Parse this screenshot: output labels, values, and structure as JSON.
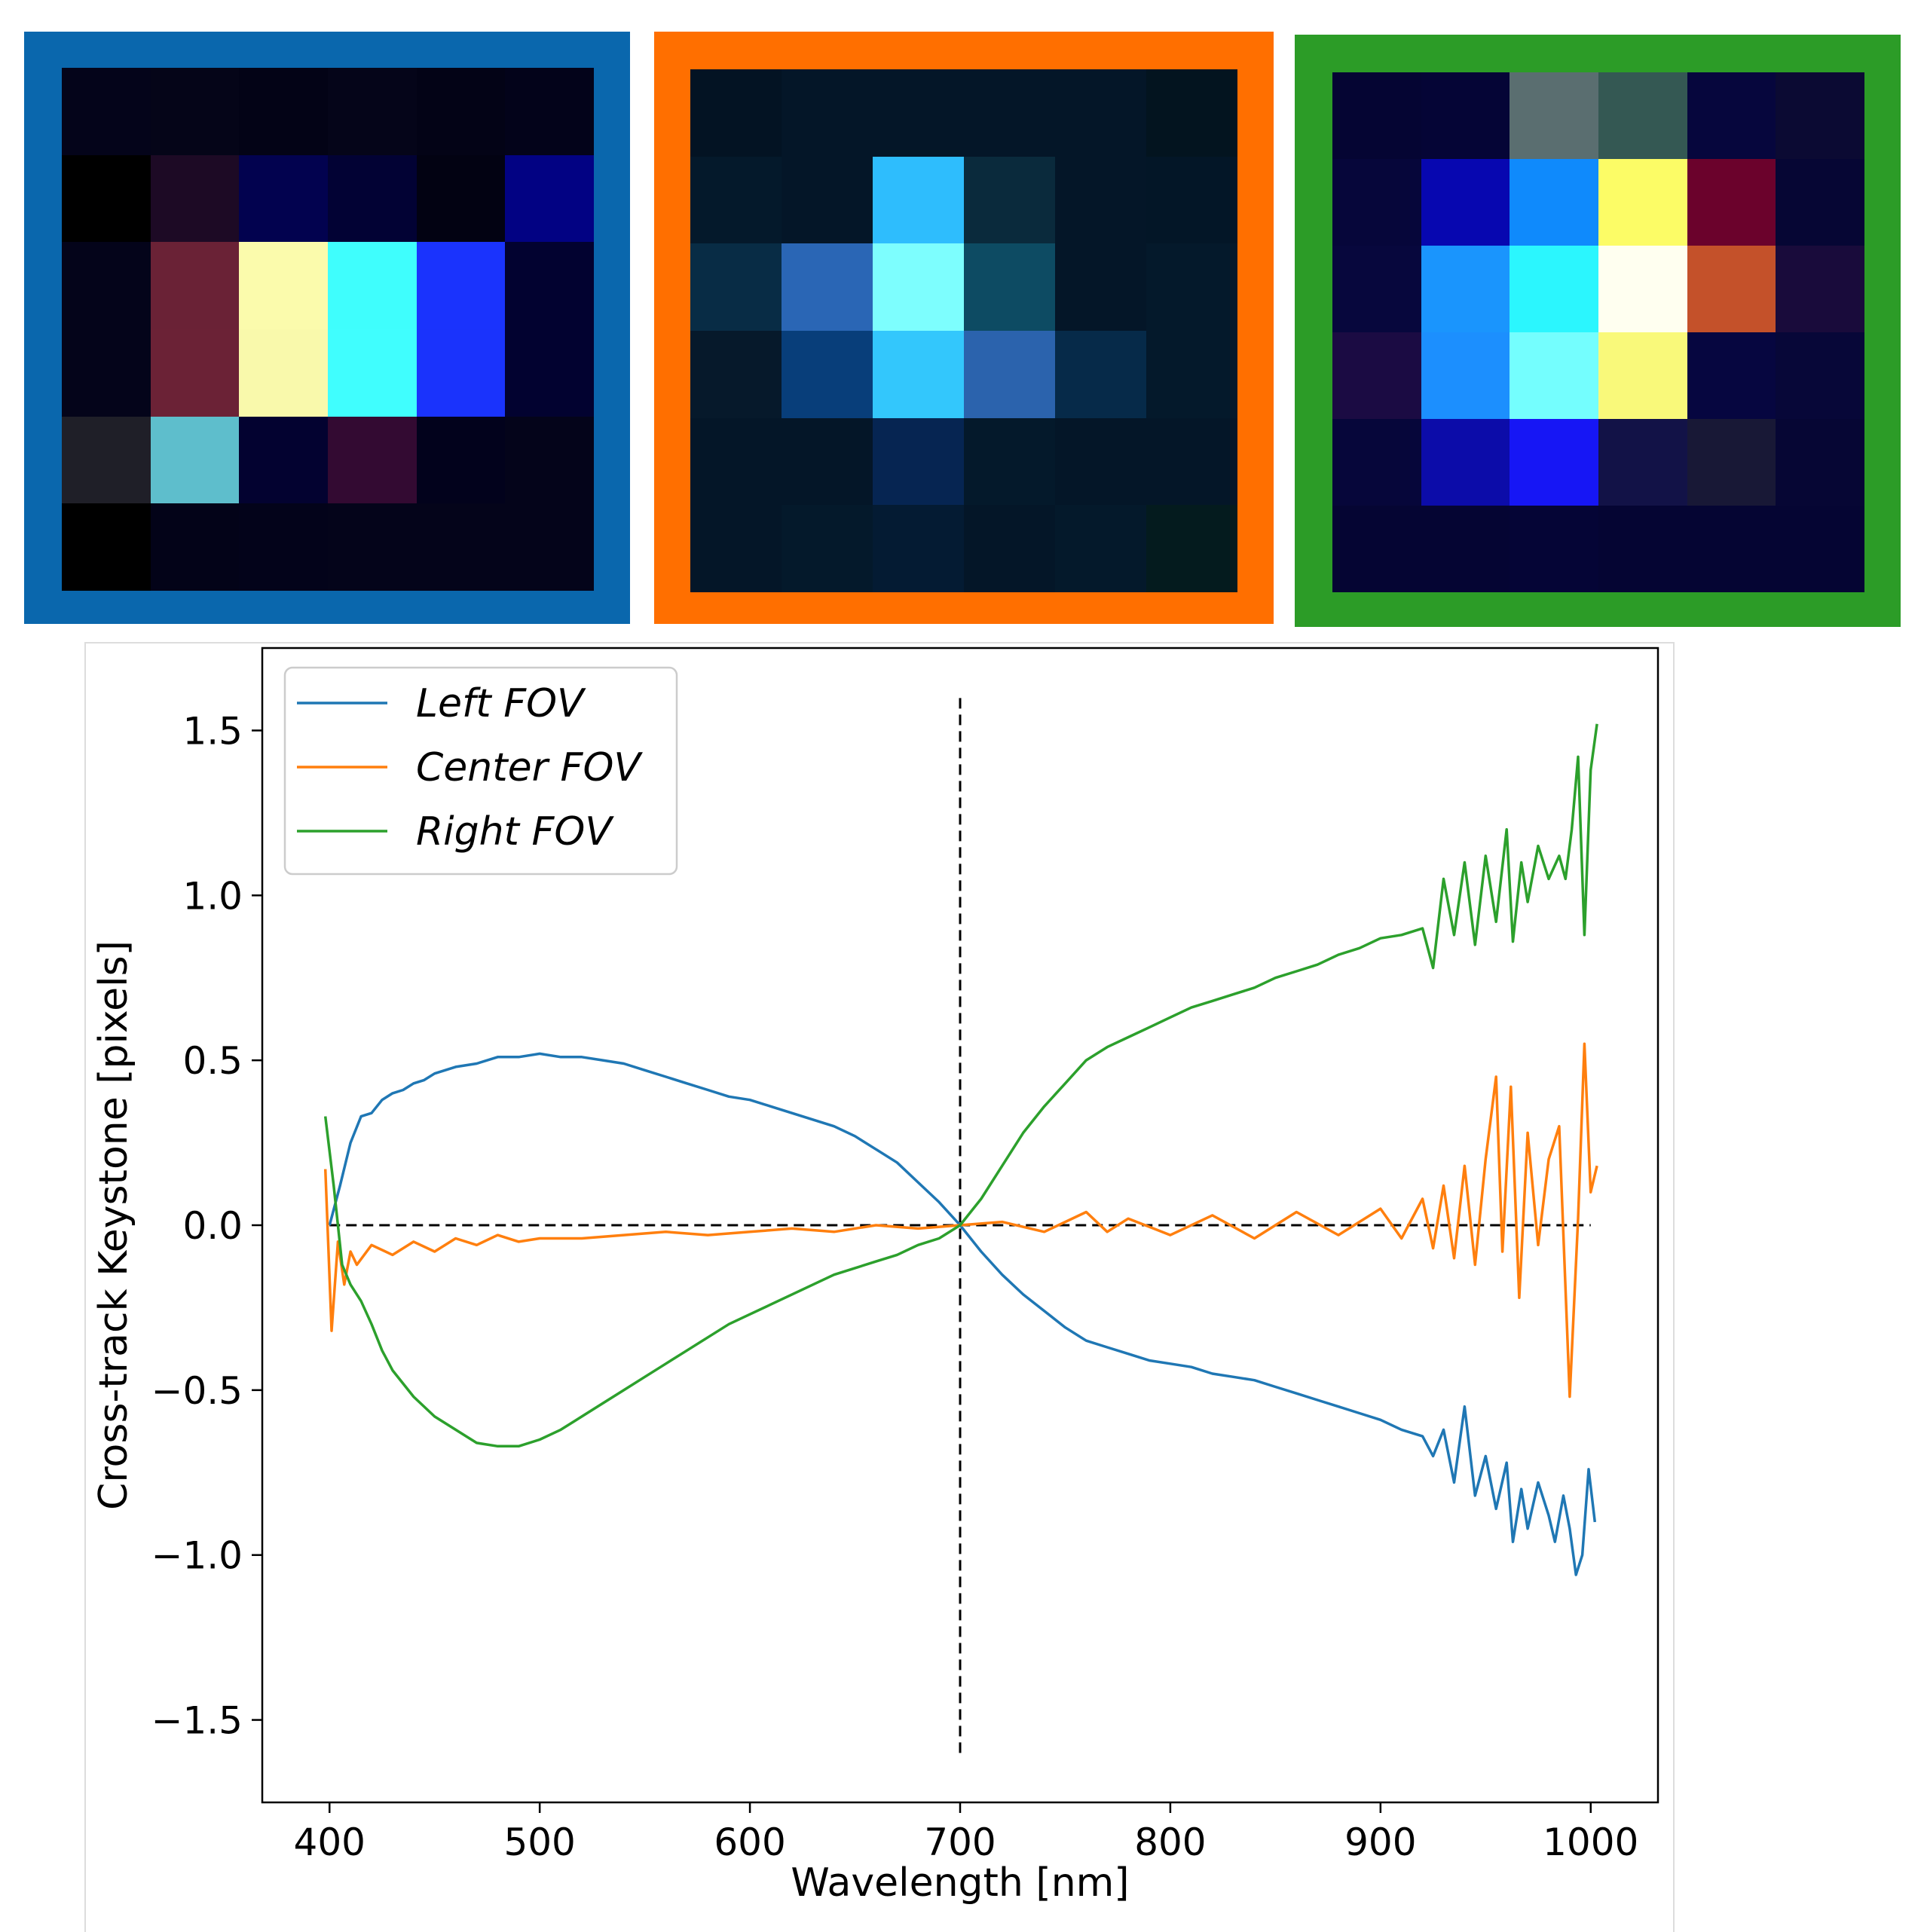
{
  "colors": {
    "left": "#1f77b4",
    "center": "#ff7f0e",
    "right": "#2ca02c"
  },
  "panels": [
    {
      "name": "left-fov-panel",
      "frame_color": "#0a67ad",
      "grid": [
        [
          "#04041a",
          "#050518",
          "#030316",
          "#050519",
          "#030316",
          "#03031a"
        ],
        [
          "#000000",
          "#1d0a25",
          "#02024f",
          "#020234",
          "#020212",
          "#020283"
        ],
        [
          "#04041a",
          "#6a2236",
          "#fbfbac",
          "#3ffefd",
          "#1a33fd",
          "#020230"
        ],
        [
          "#04041a",
          "#6b2236",
          "#f9f9ab",
          "#40fefe",
          "#1a33fc",
          "#020230"
        ],
        [
          "#1f1f28",
          "#5ebecc",
          "#030230",
          "#330a32",
          "#02021c",
          "#04041a"
        ],
        [
          "#000000",
          "#030318",
          "#03031a",
          "#04041a",
          "#04041a",
          "#04041a"
        ]
      ]
    },
    {
      "name": "center-fov-panel",
      "frame_color": "#ff6f00",
      "grid": [
        [
          "#031323",
          "#041628",
          "#041628",
          "#041628",
          "#041628",
          "#03141f"
        ],
        [
          "#04192b",
          "#041628",
          "#2ebdfd",
          "#0a2a3c",
          "#041628",
          "#031627"
        ],
        [
          "#082c45",
          "#2a66b5",
          "#7dfefe",
          "#0d4b63",
          "#041628",
          "#04192b"
        ],
        [
          "#06192b",
          "#083e7a",
          "#33c7fc",
          "#2b63ad",
          "#062a49",
          "#04192b"
        ],
        [
          "#041628",
          "#041628",
          "#062552",
          "#04192b",
          "#041628",
          "#041628"
        ],
        [
          "#041628",
          "#04192b",
          "#041b33",
          "#041628",
          "#04192b",
          "#041b1e"
        ]
      ]
    },
    {
      "name": "right-fov-panel",
      "frame_color": "#2c9c27",
      "grid": [
        [
          "#050533",
          "#050536",
          "#5a6e70",
          "#345853",
          "#06063d",
          "#0b0a33"
        ],
        [
          "#06063a",
          "#0707b0",
          "#0f8afc",
          "#fcfc66",
          "#6b022c",
          "#060634"
        ],
        [
          "#07073d",
          "#1a95fd",
          "#2bf6fe",
          "#fffff0",
          "#c4512a",
          "#190b3b"
        ],
        [
          "#1b0b43",
          "#1c8ffe",
          "#74fefe",
          "#f9f97a",
          "#060640",
          "#070738"
        ],
        [
          "#06063a",
          "#0c0ca9",
          "#1616f5",
          "#121247",
          "#181836",
          "#060634"
        ],
        [
          "#050533",
          "#050533",
          "#050536",
          "#050533",
          "#050533",
          "#050533"
        ]
      ]
    }
  ],
  "chart_data": {
    "type": "line",
    "xlabel": "Wavelength [nm]",
    "ylabel": "Cross-track Keystone [pixels]",
    "xlim": [
      368,
      1032
    ],
    "ylim": [
      -1.75,
      1.75
    ],
    "x_ticks": [
      400,
      500,
      600,
      700,
      800,
      900,
      1000
    ],
    "x_tick_labels": [
      "400",
      "500",
      "600",
      "700",
      "800",
      "900",
      "1000"
    ],
    "y_ticks": [
      -1.5,
      -1.0,
      -0.5,
      0.0,
      0.5,
      1.0,
      1.5
    ],
    "y_tick_labels": [
      "−1.5",
      "−1.0",
      "−0.5",
      "0.0",
      "0.5",
      "1.0",
      "1.5"
    ],
    "legend": {
      "position": "top-left",
      "labels": [
        "Left FOV",
        "Center FOV",
        "Right FOV"
      ]
    },
    "reference_lines": [
      {
        "orientation": "horizontal",
        "y": 0.0,
        "x_range": [
          400,
          1000
        ],
        "style": "dashed",
        "color": "#000000"
      },
      {
        "orientation": "vertical",
        "x": 700,
        "y_range": [
          -1.6,
          1.6
        ],
        "style": "dashed",
        "color": "#000000"
      }
    ],
    "series": [
      {
        "name": "Left FOV",
        "color": "#1f77b4",
        "points": [
          [
            400,
            0.0
          ],
          [
            405,
            0.12
          ],
          [
            410,
            0.25
          ],
          [
            415,
            0.33
          ],
          [
            420,
            0.34
          ],
          [
            425,
            0.38
          ],
          [
            430,
            0.4
          ],
          [
            435,
            0.41
          ],
          [
            440,
            0.43
          ],
          [
            445,
            0.44
          ],
          [
            450,
            0.46
          ],
          [
            460,
            0.48
          ],
          [
            470,
            0.49
          ],
          [
            480,
            0.51
          ],
          [
            490,
            0.51
          ],
          [
            500,
            0.52
          ],
          [
            510,
            0.51
          ],
          [
            520,
            0.51
          ],
          [
            530,
            0.5
          ],
          [
            540,
            0.49
          ],
          [
            550,
            0.47
          ],
          [
            560,
            0.45
          ],
          [
            570,
            0.43
          ],
          [
            580,
            0.41
          ],
          [
            590,
            0.39
          ],
          [
            600,
            0.38
          ],
          [
            610,
            0.36
          ],
          [
            620,
            0.34
          ],
          [
            630,
            0.32
          ],
          [
            640,
            0.3
          ],
          [
            650,
            0.27
          ],
          [
            660,
            0.23
          ],
          [
            670,
            0.19
          ],
          [
            680,
            0.13
          ],
          [
            690,
            0.07
          ],
          [
            700,
            0.0
          ],
          [
            710,
            -0.08
          ],
          [
            720,
            -0.15
          ],
          [
            730,
            -0.21
          ],
          [
            740,
            -0.26
          ],
          [
            750,
            -0.31
          ],
          [
            760,
            -0.35
          ],
          [
            770,
            -0.37
          ],
          [
            780,
            -0.39
          ],
          [
            790,
            -0.41
          ],
          [
            800,
            -0.42
          ],
          [
            810,
            -0.43
          ],
          [
            820,
            -0.45
          ],
          [
            830,
            -0.46
          ],
          [
            840,
            -0.47
          ],
          [
            850,
            -0.49
          ],
          [
            860,
            -0.51
          ],
          [
            870,
            -0.53
          ],
          [
            880,
            -0.55
          ],
          [
            890,
            -0.57
          ],
          [
            900,
            -0.59
          ],
          [
            910,
            -0.62
          ],
          [
            920,
            -0.64
          ],
          [
            925,
            -0.7
          ],
          [
            930,
            -0.62
          ],
          [
            935,
            -0.78
          ],
          [
            940,
            -0.55
          ],
          [
            945,
            -0.82
          ],
          [
            950,
            -0.7
          ],
          [
            955,
            -0.86
          ],
          [
            960,
            -0.72
          ],
          [
            963,
            -0.96
          ],
          [
            967,
            -0.8
          ],
          [
            970,
            -0.92
          ],
          [
            975,
            -0.78
          ],
          [
            980,
            -0.88
          ],
          [
            983,
            -0.96
          ],
          [
            987,
            -0.82
          ],
          [
            990,
            -0.92
          ],
          [
            993,
            -1.06
          ],
          [
            996,
            -1.0
          ],
          [
            999,
            -0.74
          ],
          [
            1002,
            -0.9
          ]
        ]
      },
      {
        "name": "Center FOV",
        "color": "#ff7f0e",
        "points": [
          [
            398,
            0.17
          ],
          [
            401,
            -0.32
          ],
          [
            404,
            -0.05
          ],
          [
            407,
            -0.18
          ],
          [
            410,
            -0.08
          ],
          [
            413,
            -0.12
          ],
          [
            420,
            -0.06
          ],
          [
            430,
            -0.09
          ],
          [
            440,
            -0.05
          ],
          [
            450,
            -0.08
          ],
          [
            460,
            -0.04
          ],
          [
            470,
            -0.06
          ],
          [
            480,
            -0.03
          ],
          [
            490,
            -0.05
          ],
          [
            500,
            -0.04
          ],
          [
            520,
            -0.04
          ],
          [
            540,
            -0.03
          ],
          [
            560,
            -0.02
          ],
          [
            580,
            -0.03
          ],
          [
            600,
            -0.02
          ],
          [
            620,
            -0.01
          ],
          [
            640,
            -0.02
          ],
          [
            660,
            0.0
          ],
          [
            680,
            -0.01
          ],
          [
            700,
            0.0
          ],
          [
            720,
            0.01
          ],
          [
            740,
            -0.02
          ],
          [
            760,
            0.04
          ],
          [
            770,
            -0.02
          ],
          [
            780,
            0.02
          ],
          [
            800,
            -0.03
          ],
          [
            820,
            0.03
          ],
          [
            840,
            -0.04
          ],
          [
            860,
            0.04
          ],
          [
            880,
            -0.03
          ],
          [
            900,
            0.05
          ],
          [
            910,
            -0.04
          ],
          [
            920,
            0.08
          ],
          [
            925,
            -0.07
          ],
          [
            930,
            0.12
          ],
          [
            935,
            -0.1
          ],
          [
            940,
            0.18
          ],
          [
            945,
            -0.12
          ],
          [
            950,
            0.2
          ],
          [
            955,
            0.45
          ],
          [
            958,
            -0.08
          ],
          [
            962,
            0.42
          ],
          [
            966,
            -0.22
          ],
          [
            970,
            0.28
          ],
          [
            975,
            -0.06
          ],
          [
            980,
            0.2
          ],
          [
            985,
            0.3
          ],
          [
            990,
            -0.52
          ],
          [
            994,
            0.02
          ],
          [
            997,
            0.55
          ],
          [
            1000,
            0.1
          ],
          [
            1003,
            0.18
          ]
        ]
      },
      {
        "name": "Right FOV",
        "color": "#2ca02c",
        "points": [
          [
            398,
            0.33
          ],
          [
            402,
            0.12
          ],
          [
            406,
            -0.12
          ],
          [
            410,
            -0.18
          ],
          [
            415,
            -0.23
          ],
          [
            420,
            -0.3
          ],
          [
            425,
            -0.38
          ],
          [
            430,
            -0.44
          ],
          [
            440,
            -0.52
          ],
          [
            450,
            -0.58
          ],
          [
            460,
            -0.62
          ],
          [
            470,
            -0.66
          ],
          [
            480,
            -0.67
          ],
          [
            490,
            -0.67
          ],
          [
            500,
            -0.65
          ],
          [
            510,
            -0.62
          ],
          [
            520,
            -0.58
          ],
          [
            530,
            -0.54
          ],
          [
            540,
            -0.5
          ],
          [
            550,
            -0.46
          ],
          [
            560,
            -0.42
          ],
          [
            570,
            -0.38
          ],
          [
            580,
            -0.34
          ],
          [
            590,
            -0.3
          ],
          [
            600,
            -0.27
          ],
          [
            610,
            -0.24
          ],
          [
            620,
            -0.21
          ],
          [
            630,
            -0.18
          ],
          [
            640,
            -0.15
          ],
          [
            650,
            -0.13
          ],
          [
            660,
            -0.11
          ],
          [
            670,
            -0.09
          ],
          [
            680,
            -0.06
          ],
          [
            690,
            -0.04
          ],
          [
            700,
            0.0
          ],
          [
            710,
            0.08
          ],
          [
            720,
            0.18
          ],
          [
            730,
            0.28
          ],
          [
            740,
            0.36
          ],
          [
            750,
            0.43
          ],
          [
            760,
            0.5
          ],
          [
            770,
            0.54
          ],
          [
            780,
            0.57
          ],
          [
            790,
            0.6
          ],
          [
            800,
            0.63
          ],
          [
            810,
            0.66
          ],
          [
            820,
            0.68
          ],
          [
            830,
            0.7
          ],
          [
            840,
            0.72
          ],
          [
            850,
            0.75
          ],
          [
            860,
            0.77
          ],
          [
            870,
            0.79
          ],
          [
            880,
            0.82
          ],
          [
            890,
            0.84
          ],
          [
            900,
            0.87
          ],
          [
            910,
            0.88
          ],
          [
            920,
            0.9
          ],
          [
            925,
            0.78
          ],
          [
            930,
            1.05
          ],
          [
            935,
            0.88
          ],
          [
            940,
            1.1
          ],
          [
            945,
            0.85
          ],
          [
            950,
            1.12
          ],
          [
            955,
            0.92
          ],
          [
            960,
            1.2
          ],
          [
            963,
            0.86
          ],
          [
            967,
            1.1
          ],
          [
            970,
            0.98
          ],
          [
            975,
            1.15
          ],
          [
            980,
            1.05
          ],
          [
            985,
            1.12
          ],
          [
            988,
            1.05
          ],
          [
            991,
            1.2
          ],
          [
            994,
            1.42
          ],
          [
            997,
            0.88
          ],
          [
            1000,
            1.38
          ],
          [
            1003,
            1.52
          ]
        ]
      }
    ]
  }
}
